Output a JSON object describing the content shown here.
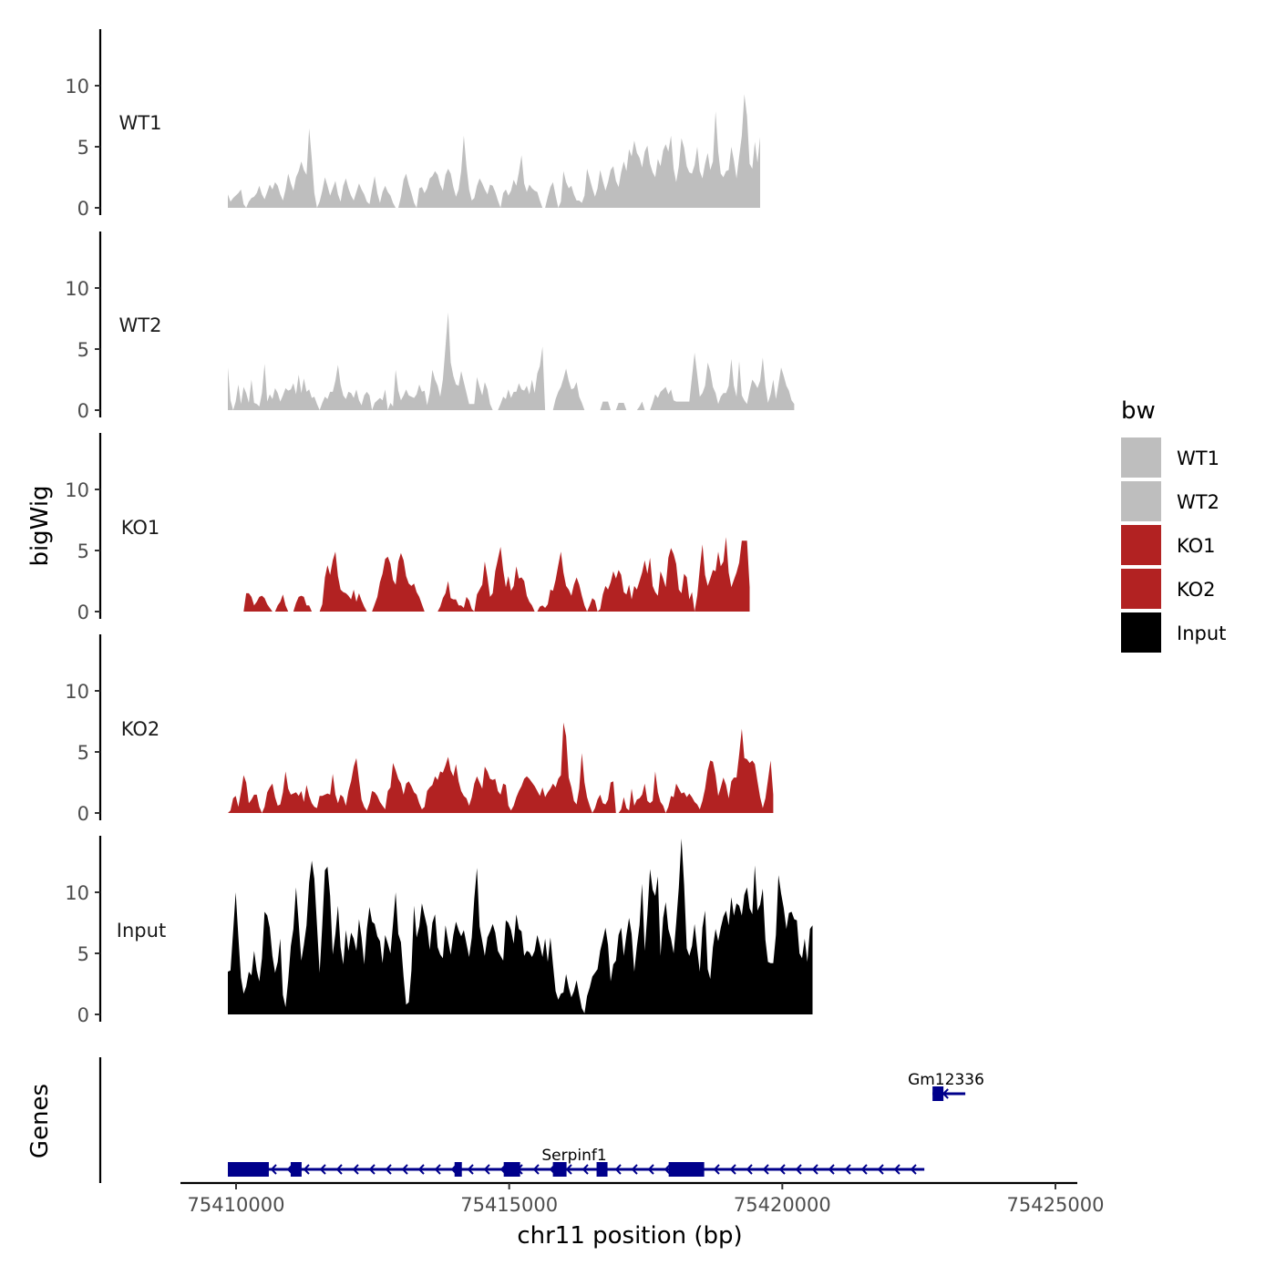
{
  "chart_data": {
    "type": "area",
    "title": "",
    "xlabel": "chr11 position (bp)",
    "ylabel": "bigWig",
    "genes_label": "Genes",
    "xlim": [
      75409000,
      75425500
    ],
    "x_ticks": [
      75410000,
      75415000,
      75420000,
      75425000
    ],
    "x_tick_labels": [
      "75410000",
      "75415000",
      "75420000",
      "75425000"
    ],
    "ylim": [
      0,
      15
    ],
    "y_ticks": [
      0,
      5,
      10
    ],
    "y_tick_labels": [
      "0",
      "5",
      "10"
    ],
    "x_start": 75409850,
    "x_step": 48,
    "legend": {
      "title": "bw",
      "entries": [
        {
          "label": "WT1",
          "color": "#BEBEBE"
        },
        {
          "label": "WT2",
          "color": "#BEBEBE"
        },
        {
          "label": "KO1",
          "color": "#B22222"
        },
        {
          "label": "KO2",
          "color": "#B22222"
        },
        {
          "label": "Input",
          "color": "#000000"
        }
      ],
      "position": "right"
    },
    "series": [
      {
        "name": "WT1",
        "color": "#BEBEBE",
        "values": [
          1.1,
          0.5,
          0.8,
          1.0,
          1.2,
          1.5,
          0.3,
          0,
          0.5,
          0.8,
          0.9,
          1.2,
          1.8,
          1.1,
          0.7,
          1.3,
          1.9,
          1.5,
          2.1,
          1.8,
          1.1,
          0.6,
          1.5,
          2.8,
          2.0,
          1.4,
          2.5,
          3.0,
          3.8,
          3.1,
          2.7,
          6.5,
          4.0,
          1.2,
          0,
          0.5,
          1.4,
          2.5,
          1.8,
          1.0,
          1.6,
          2.2,
          1.1,
          0.5,
          1.8,
          2.4,
          1.6,
          1.0,
          0.6,
          1.3,
          2.0,
          1.5,
          1.1,
          0.5,
          0.3,
          1.5,
          2.6,
          1.2,
          0.4,
          1.3,
          1.8,
          1.3,
          1.0,
          0.4,
          0,
          0,
          0.9,
          2.3,
          2.8,
          1.9,
          1.2,
          0.4,
          0,
          1.6,
          1.7,
          1.2,
          1.6,
          2.4,
          2.6,
          3.0,
          2.7,
          1.9,
          1.4,
          2.7,
          3.2,
          2.8,
          1.7,
          0.9,
          1.5,
          3.0,
          5.9,
          3.4,
          1.5,
          0.6,
          0.8,
          1.8,
          2.4,
          2.0,
          1.5,
          1.1,
          1.9,
          1.8,
          1.3,
          0.6,
          0,
          1.2,
          1.5,
          1.0,
          1.4,
          2.3,
          1.8,
          2.9,
          4.3,
          2.0,
          1.3,
          1.9,
          1.6,
          1.4,
          1.3,
          0.6,
          0,
          0,
          0.9,
          1.7,
          2.1,
          1.0,
          0,
          0.5,
          3.0,
          2.1,
          1.6,
          1.8,
          1.1,
          0.6,
          0.6,
          0.4,
          1.0,
          3.2,
          2.4,
          1.6,
          0.9,
          1.6,
          3.1,
          2.2,
          1.4,
          2.1,
          3.1,
          3.4,
          2.2,
          1.7,
          2.9,
          3.8,
          3.0,
          4.8,
          4.2,
          5.5,
          4.5,
          4.1,
          3.3,
          4.6,
          5.1,
          3.6,
          2.9,
          2.5,
          4.0,
          3.4,
          4.7,
          5.2,
          4.6,
          5.9,
          3.2,
          2.1,
          3.4,
          5.7,
          4.9,
          3.4,
          2.9,
          2.8,
          3.5,
          5.0,
          3.0,
          2.4,
          3.6,
          4.5,
          3.1,
          3.8,
          7.9,
          4.6,
          2.8,
          2.5,
          3.0,
          3.1,
          5.0,
          3.9,
          2.4,
          4.2,
          5.9,
          9.3,
          7.5,
          3.6,
          3.2,
          5.4,
          3.7,
          5.8
        ]
      },
      {
        "name": "WT2",
        "color": "#BEBEBE",
        "values": [
          3.5,
          0.8,
          0,
          0.7,
          2.1,
          0.5,
          1.9,
          1.4,
          0.6,
          2.5,
          0.6,
          0.5,
          0.3,
          1.4,
          3.8,
          0.7,
          1.3,
          0.9,
          1.8,
          1.4,
          0.7,
          1.2,
          1.8,
          1.6,
          1.7,
          2.2,
          1.3,
          2.9,
          1.4,
          2.6,
          1.5,
          1.7,
          1.0,
          1.1,
          0.5,
          0,
          0.6,
          1.1,
          0.9,
          1.5,
          1.5,
          2.4,
          3.7,
          2.1,
          1.2,
          0.9,
          1.5,
          1.4,
          1.0,
          1.7,
          0.8,
          0.4,
          1.2,
          1.5,
          1.2,
          0,
          0.6,
          0.8,
          1.0,
          0.8,
          1.7,
          0,
          0.6,
          0.3,
          3.3,
          1.6,
          0.8,
          1.2,
          1.7,
          1.2,
          1.1,
          1.0,
          1.3,
          2.1,
          1.5,
          1.6,
          0.4,
          1.4,
          3.3,
          2.5,
          2.0,
          1.1,
          2.5,
          5.2,
          8.0,
          3.9,
          2.8,
          2.1,
          2.0,
          3.2,
          2.3,
          1.4,
          0.5,
          0.5,
          0.5,
          2.7,
          1.9,
          1.2,
          2.3,
          1.7,
          0.5,
          0,
          0,
          0,
          0.5,
          1.1,
          0.9,
          1.7,
          1.0,
          1.5,
          1.5,
          2.2,
          1.7,
          1.6,
          2.0,
          1.3,
          2.5,
          1.4,
          3.0,
          3.6,
          5.2,
          0,
          0,
          0,
          0,
          0.9,
          1.5,
          1.9,
          2.6,
          3.4,
          2.4,
          1.7,
          1.8,
          2.3,
          1.1,
          0.6,
          0,
          0,
          0,
          0,
          0,
          0,
          0,
          0.7,
          0.7,
          0.7,
          0,
          0,
          0,
          0.6,
          0.6,
          0.6,
          0,
          0,
          0,
          0,
          0,
          0.3,
          0.7,
          0,
          0,
          0,
          0.6,
          1.3,
          1.0,
          1.5,
          1.7,
          1.9,
          1.3,
          1.7,
          0.8,
          0.7,
          0.7,
          0.7,
          0.7,
          0.7,
          0.7,
          2.7,
          4.7,
          2.9,
          1.1,
          1.4,
          2.0,
          3.9,
          3.2,
          1.9,
          1.4,
          0.5,
          1.1,
          1.4,
          1.4,
          2.0,
          4.2,
          2.0,
          1.1,
          4.0,
          1.2,
          0.8,
          0.5,
          1.6,
          2.5,
          2.2,
          1.8,
          2.4,
          4.3,
          2.0,
          0.6,
          1.3,
          2.5,
          0.9,
          2.1,
          3.5,
          2.8,
          2.0,
          1.6,
          0.8,
          0.5
        ]
      },
      {
        "name": "KO1",
        "color": "#B22222",
        "values": [
          0,
          0,
          0,
          0,
          0,
          0,
          0,
          1.5,
          1.5,
          1.2,
          0.5,
          0.8,
          1.2,
          1.3,
          1.1,
          0.6,
          0.3,
          0,
          0,
          0.5,
          0.8,
          1.4,
          0.5,
          0,
          0,
          0,
          0.7,
          1.2,
          1.3,
          1.2,
          0.5,
          0.5,
          0,
          0,
          0,
          0,
          0.6,
          2.8,
          3.8,
          3.0,
          4.2,
          4.9,
          2.9,
          1.8,
          1.6,
          1.5,
          1.3,
          1.0,
          1.8,
          0.8,
          1.5,
          0.9,
          0.4,
          0,
          0,
          0,
          0.6,
          1.2,
          2.4,
          3.1,
          4.3,
          4.5,
          3.9,
          2.6,
          2.2,
          4.1,
          4.8,
          4.2,
          2.9,
          2.3,
          2.1,
          2.3,
          1.6,
          1.2,
          0.6,
          0,
          0,
          0,
          0,
          0,
          0,
          0.4,
          1.1,
          1.5,
          2.5,
          1.1,
          1.0,
          1.0,
          0.5,
          0.5,
          0.3,
          1.2,
          0.9,
          0.2,
          0,
          1.4,
          1.8,
          2.2,
          4.1,
          2.8,
          1.2,
          1.5,
          3.3,
          4.3,
          5.3,
          3.4,
          2.0,
          2.9,
          1.7,
          2.1,
          3.7,
          2.7,
          2.8,
          2.5,
          1.3,
          0.8,
          0.5,
          0,
          0,
          0.4,
          0.5,
          0.3,
          0.6,
          1.8,
          1.7,
          2.6,
          3.8,
          4.9,
          3.2,
          2.1,
          1.8,
          1.3,
          2.2,
          2.8,
          2.2,
          1.3,
          0.5,
          0,
          0.5,
          1.1,
          0.9,
          0,
          0.2,
          1.4,
          2.1,
          1.8,
          2.4,
          3.3,
          2.7,
          3.4,
          3.0,
          1.6,
          1.4,
          2.2,
          1.0,
          2.1,
          1.8,
          2.5,
          3.2,
          4.2,
          3.1,
          4.4,
          2.1,
          1.6,
          1.3,
          3.3,
          2.7,
          2.0,
          4.4,
          5.2,
          4.7,
          3.9,
          1.8,
          1.5,
          3.1,
          2.8,
          1.0,
          1.6,
          0,
          1.3,
          3.5,
          5.5,
          3.0,
          2.1,
          2.7,
          3.4,
          3.3,
          4.9,
          3.7,
          4.1,
          6.1,
          3.2,
          2.0,
          2.6,
          3.2,
          4.0,
          5.8,
          5.8,
          5.8,
          2.0
        ]
      },
      {
        "name": "KO2",
        "color": "#B22222",
        "values": [
          0,
          0.2,
          1.2,
          1.4,
          0.5,
          1.7,
          3.1,
          2.5,
          0.8,
          1.1,
          1.5,
          1.5,
          0.5,
          0,
          0.5,
          1.7,
          2.1,
          2.4,
          1.3,
          0.6,
          0.7,
          1.7,
          3.4,
          2.0,
          1.5,
          1.6,
          1.7,
          1.4,
          1.8,
          0.9,
          2.3,
          1.4,
          0.8,
          0.5,
          0.4,
          1.4,
          1.4,
          1.5,
          1.6,
          1.5,
          3.2,
          1.5,
          0.8,
          1.5,
          1.3,
          0.6,
          1.8,
          2.6,
          3.8,
          4.5,
          2.7,
          1.1,
          0.5,
          0.2,
          0.8,
          1.8,
          1.7,
          1.4,
          0.9,
          0.6,
          0.3,
          1.8,
          2.1,
          4.1,
          3.5,
          2.8,
          2.4,
          1.5,
          2.4,
          2.6,
          2.2,
          1.7,
          1.5,
          0.8,
          0.3,
          0.5,
          1.8,
          2.1,
          2.3,
          3.0,
          2.7,
          3.4,
          3.3,
          3.9,
          4.6,
          3.5,
          3.0,
          4.0,
          2.6,
          1.8,
          1.4,
          1.2,
          0.6,
          1.3,
          2.4,
          3.0,
          2.5,
          2.0,
          3.8,
          3.4,
          2.8,
          2.7,
          2.8,
          1.8,
          1.5,
          2.4,
          2.3,
          0.6,
          0.2,
          0.6,
          1.3,
          1.8,
          2.2,
          2.8,
          3.0,
          2.8,
          2.5,
          2.2,
          1.8,
          1.4,
          2.1,
          1.3,
          1.7,
          2.0,
          2.4,
          2.1,
          2.8,
          3.1,
          7.4,
          6.3,
          2.9,
          2.1,
          1.0,
          0.7,
          2.0,
          4.9,
          2.5,
          1.3,
          0.6,
          0,
          0.4,
          1.1,
          1.5,
          0.8,
          0.7,
          1.1,
          2.5,
          2.6,
          0,
          0,
          0.3,
          1.3,
          0.4,
          0.2,
          2.0,
          0.6,
          1.1,
          1.2,
          1.5,
          2.4,
          1.0,
          0.8,
          1.0,
          3.4,
          1.7,
          0.9,
          0.6,
          0,
          0.5,
          1.4,
          1.3,
          2.4,
          2.0,
          1.6,
          1.7,
          1.3,
          1.6,
          1.3,
          0.9,
          0.7,
          0.3,
          1.0,
          2.0,
          3.5,
          4.3,
          4.2,
          3.1,
          1.4,
          2.1,
          2.9,
          2.3,
          1.2,
          2.6,
          2.9,
          2.9,
          4.8,
          6.9,
          4.5,
          4.4,
          4.1,
          4.3,
          4.0,
          2.6,
          1.3,
          0.4,
          1.2,
          2.7,
          4.3,
          1.5
        ]
      },
      {
        "name": "Input",
        "color": "#000000",
        "values": [
          3.5,
          3.6,
          6.8,
          10.0,
          6.4,
          3.0,
          1.7,
          2.3,
          3.5,
          3.2,
          5.2,
          3.6,
          2.7,
          4.6,
          8.4,
          8.1,
          7.1,
          4.8,
          3.4,
          4.3,
          6.2,
          1.6,
          0.6,
          2.8,
          5.6,
          7.0,
          10.4,
          7.5,
          4.4,
          5.7,
          7.3,
          10.8,
          12.6,
          11.1,
          7.3,
          3.4,
          7.3,
          11.8,
          12.1,
          9.7,
          4.9,
          6.6,
          8.9,
          5.5,
          4.1,
          6.9,
          5.2,
          6.7,
          6.2,
          5.2,
          7.8,
          6.3,
          4.1,
          7.0,
          8.8,
          7.6,
          7.4,
          6.4,
          6.0,
          4.2,
          6.5,
          5.8,
          5.0,
          7.4,
          10.0,
          6.6,
          5.9,
          3.1,
          0.8,
          1.0,
          3.6,
          8.9,
          6.3,
          7.2,
          9.1,
          8.1,
          7.2,
          5.3,
          7.5,
          8.2,
          5.5,
          4.9,
          4.6,
          7.3,
          6.0,
          4.9,
          6.5,
          7.6,
          6.9,
          6.4,
          6.9,
          5.8,
          4.7,
          6.3,
          9.5,
          12.0,
          7.2,
          6.0,
          4.8,
          6.3,
          6.8,
          7.4,
          6.7,
          5.2,
          4.8,
          4.4,
          7.7,
          7.5,
          6.9,
          5.8,
          8.2,
          7.0,
          6.8,
          4.8,
          5.2,
          5.1,
          4.7,
          5.2,
          6.5,
          5.7,
          4.7,
          6.2,
          4.3,
          6.3,
          4.1,
          1.9,
          1.2,
          1.7,
          1.8,
          3.3,
          2.2,
          1.4,
          1.9,
          2.8,
          1.6,
          0.5,
          0.1,
          1.5,
          2.2,
          3.1,
          3.4,
          3.7,
          5.2,
          6.1,
          7.1,
          5.7,
          2.7,
          4.1,
          4.4,
          6.5,
          7.1,
          4.8,
          6.5,
          7.9,
          6.6,
          3.5,
          5.6,
          7.3,
          10.7,
          5.2,
          8.2,
          11.9,
          10.2,
          9.7,
          11.3,
          4.8,
          7.9,
          9.2,
          7.0,
          6.2,
          5.0,
          7.5,
          10.4,
          14.4,
          10.6,
          5.4,
          4.8,
          5.6,
          7.4,
          5.3,
          3.5,
          7.1,
          8.5,
          3.7,
          2.9,
          5.5,
          7.0,
          6.0,
          7.1,
          8.0,
          8.5,
          7.3,
          9.6,
          8.1,
          9.1,
          8.9,
          8.1,
          9.8,
          10.4,
          8.7,
          8.2,
          12.2,
          8.5,
          9.0,
          10.3,
          6.1,
          4.3,
          4.2,
          4.2,
          6.5,
          11.4,
          9.9,
          8.7,
          7.0,
          8.3,
          8.4,
          7.8,
          7.7,
          5.0,
          4.6,
          6.2,
          4.3,
          7.0,
          7.3
        ]
      }
    ],
    "genes": [
      {
        "name": "Serpinf1",
        "start": 75409850,
        "end": 75422600,
        "strand": "-",
        "row": 1,
        "exons": [
          [
            75409850,
            75410600
          ],
          [
            75411000,
            75411200
          ],
          [
            75414000,
            75414100
          ],
          [
            75414900,
            75415200
          ],
          [
            75415800,
            75416050
          ],
          [
            75416600,
            75416800
          ],
          [
            75417920,
            75418570
          ]
        ]
      },
      {
        "name": "Gm12336",
        "start": 75422750,
        "end": 75423350,
        "strand": "-",
        "row": 2,
        "exons": [
          [
            75422750,
            75422950
          ]
        ]
      }
    ],
    "gene_color": "#00008B"
  }
}
